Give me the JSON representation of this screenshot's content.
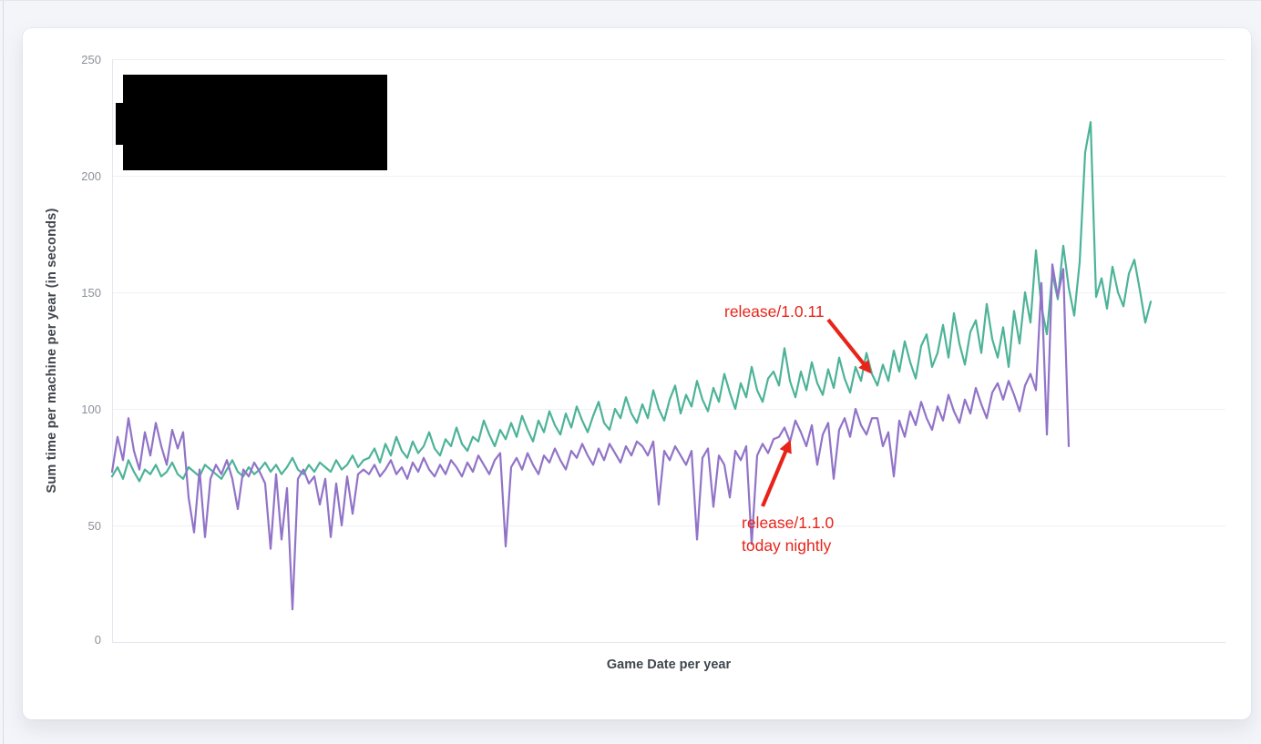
{
  "page": {
    "background_color": "#f4f5f9",
    "card_background_color": "#ffffff"
  },
  "chart_data": {
    "type": "line",
    "title": "",
    "xlabel": "Game Date per year",
    "ylabel": "Sum time per machine per year (in seconds)",
    "ylim": [
      0,
      250
    ],
    "yticks": [
      0,
      50,
      100,
      150,
      200,
      250
    ],
    "ytick_labels": [
      "250",
      "200",
      "150",
      "100",
      "50",
      "0"
    ],
    "xtick_labels_visible": false,
    "grid": "horizontal",
    "legend_redacted": true,
    "series": [
      {
        "name": "teal-series",
        "color": "#4db398",
        "values": [
          71,
          75,
          70,
          78,
          73,
          69,
          74,
          72,
          76,
          71,
          73,
          77,
          72,
          70,
          75,
          73,
          71,
          76,
          74,
          72,
          70,
          74,
          78,
          73,
          71,
          75,
          72,
          74,
          77,
          73,
          76,
          72,
          75,
          79,
          74,
          72,
          76,
          73,
          77,
          75,
          73,
          78,
          74,
          76,
          80,
          75,
          78,
          79,
          83,
          77,
          85,
          80,
          88,
          82,
          79,
          86,
          81,
          84,
          90,
          83,
          80,
          87,
          84,
          92,
          85,
          82,
          88,
          86,
          95,
          89,
          84,
          91,
          87,
          94,
          88,
          97,
          91,
          86,
          95,
          90,
          99,
          93,
          89,
          98,
          92,
          101,
          95,
          90,
          97,
          103,
          94,
          91,
          100,
          96,
          105,
          98,
          94,
          102,
          96,
          108,
          100,
          95,
          104,
          110,
          98,
          106,
          101,
          112,
          104,
          99,
          109,
          103,
          115,
          107,
          100,
          111,
          105,
          118,
          108,
          103,
          113,
          116,
          110,
          126,
          112,
          105,
          116,
          108,
          120,
          111,
          106,
          117,
          109,
          122,
          113,
          107,
          118,
          112,
          124,
          115,
          110,
          119,
          112,
          125,
          116,
          129,
          120,
          113,
          127,
          132,
          118,
          124,
          136,
          122,
          141,
          128,
          119,
          133,
          138,
          124,
          145,
          130,
          122,
          135,
          118,
          142,
          128,
          150,
          137,
          168,
          144,
          132,
          158,
          147,
          170,
          152,
          140,
          163,
          210,
          223,
          148,
          156,
          143,
          161,
          150,
          144,
          158,
          164,
          151,
          137,
          146
        ]
      },
      {
        "name": "purple-series",
        "color": "#9173c8",
        "values": [
          73,
          88,
          78,
          96,
          82,
          74,
          90,
          80,
          94,
          84,
          76,
          91,
          83,
          90,
          62,
          47,
          74,
          45,
          70,
          76,
          72,
          78,
          70,
          57,
          74,
          71,
          77,
          73,
          68,
          40,
          72,
          44,
          66,
          14,
          70,
          74,
          68,
          71,
          59,
          70,
          45,
          68,
          50,
          71,
          55,
          72,
          74,
          72,
          76,
          71,
          74,
          78,
          72,
          75,
          70,
          77,
          73,
          79,
          74,
          71,
          76,
          72,
          78,
          75,
          71,
          77,
          73,
          80,
          76,
          72,
          78,
          81,
          41,
          75,
          79,
          74,
          81,
          76,
          72,
          80,
          77,
          83,
          78,
          74,
          82,
          79,
          85,
          80,
          76,
          83,
          78,
          85,
          81,
          77,
          84,
          80,
          86,
          84,
          80,
          86,
          59,
          82,
          78,
          84,
          80,
          76,
          82,
          44,
          79,
          83,
          58,
          80,
          76,
          62,
          82,
          78,
          84,
          42,
          80,
          85,
          81,
          87,
          88,
          92,
          86,
          95,
          90,
          84,
          93,
          76,
          89,
          94,
          70,
          91,
          96,
          88,
          100,
          93,
          89,
          96,
          96,
          84,
          90,
          71,
          95,
          88,
          99,
          93,
          103,
          96,
          91,
          101,
          95,
          106,
          99,
          94,
          104,
          98,
          109,
          102,
          96,
          107,
          111,
          104,
          112,
          106,
          99,
          110,
          115,
          108,
          154,
          89,
          162,
          148,
          160,
          84
        ]
      }
    ],
    "annotations": [
      {
        "label": "release/1.0.11",
        "color": "#e8241a",
        "target_series": "teal-series",
        "target_value_approx": 115
      },
      {
        "label_line1": "release/1.1.0",
        "label_line2": "today nightly",
        "color": "#e8241a",
        "target_series": "purple-series",
        "target_value_approx": 88
      }
    ]
  }
}
